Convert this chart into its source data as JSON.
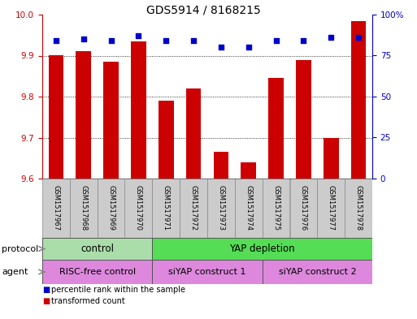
{
  "title": "GDS5914 / 8168215",
  "samples": [
    "GSM1517967",
    "GSM1517968",
    "GSM1517969",
    "GSM1517970",
    "GSM1517971",
    "GSM1517972",
    "GSM1517973",
    "GSM1517974",
    "GSM1517975",
    "GSM1517976",
    "GSM1517977",
    "GSM1517978"
  ],
  "transformed_count": [
    9.9,
    9.91,
    9.885,
    9.935,
    9.79,
    9.82,
    9.665,
    9.64,
    9.845,
    9.89,
    9.7,
    9.985
  ],
  "percentile_rank": [
    84,
    85,
    84,
    87,
    84,
    84,
    80,
    80,
    84,
    84,
    86,
    86
  ],
  "ylim_left": [
    9.6,
    10.0
  ],
  "ylim_right": [
    0,
    100
  ],
  "yticks_left": [
    9.6,
    9.7,
    9.8,
    9.9,
    10.0
  ],
  "yticks_right": [
    0,
    25,
    50,
    75,
    100
  ],
  "bar_color": "#cc0000",
  "dot_color": "#0000cc",
  "bar_width": 0.55,
  "protocol_groups": [
    {
      "label": "control",
      "start": 0,
      "end": 3,
      "color": "#aaddaa"
    },
    {
      "label": "YAP depletion",
      "start": 4,
      "end": 11,
      "color": "#55dd55"
    }
  ],
  "agent_groups": [
    {
      "label": "RISC-free control",
      "start": 0,
      "end": 3,
      "color": "#dd88dd"
    },
    {
      "label": "siYAP construct 1",
      "start": 4,
      "end": 7,
      "color": "#dd88dd"
    },
    {
      "label": "siYAP construct 2",
      "start": 8,
      "end": 11,
      "color": "#dd88dd"
    }
  ],
  "protocol_label": "protocol",
  "agent_label": "agent",
  "legend_bar_label": "transformed count",
  "legend_dot_label": "percentile rank within the sample",
  "background_color": "#ffffff",
  "plot_bg_color": "#ffffff",
  "tick_label_bg": "#cccccc"
}
